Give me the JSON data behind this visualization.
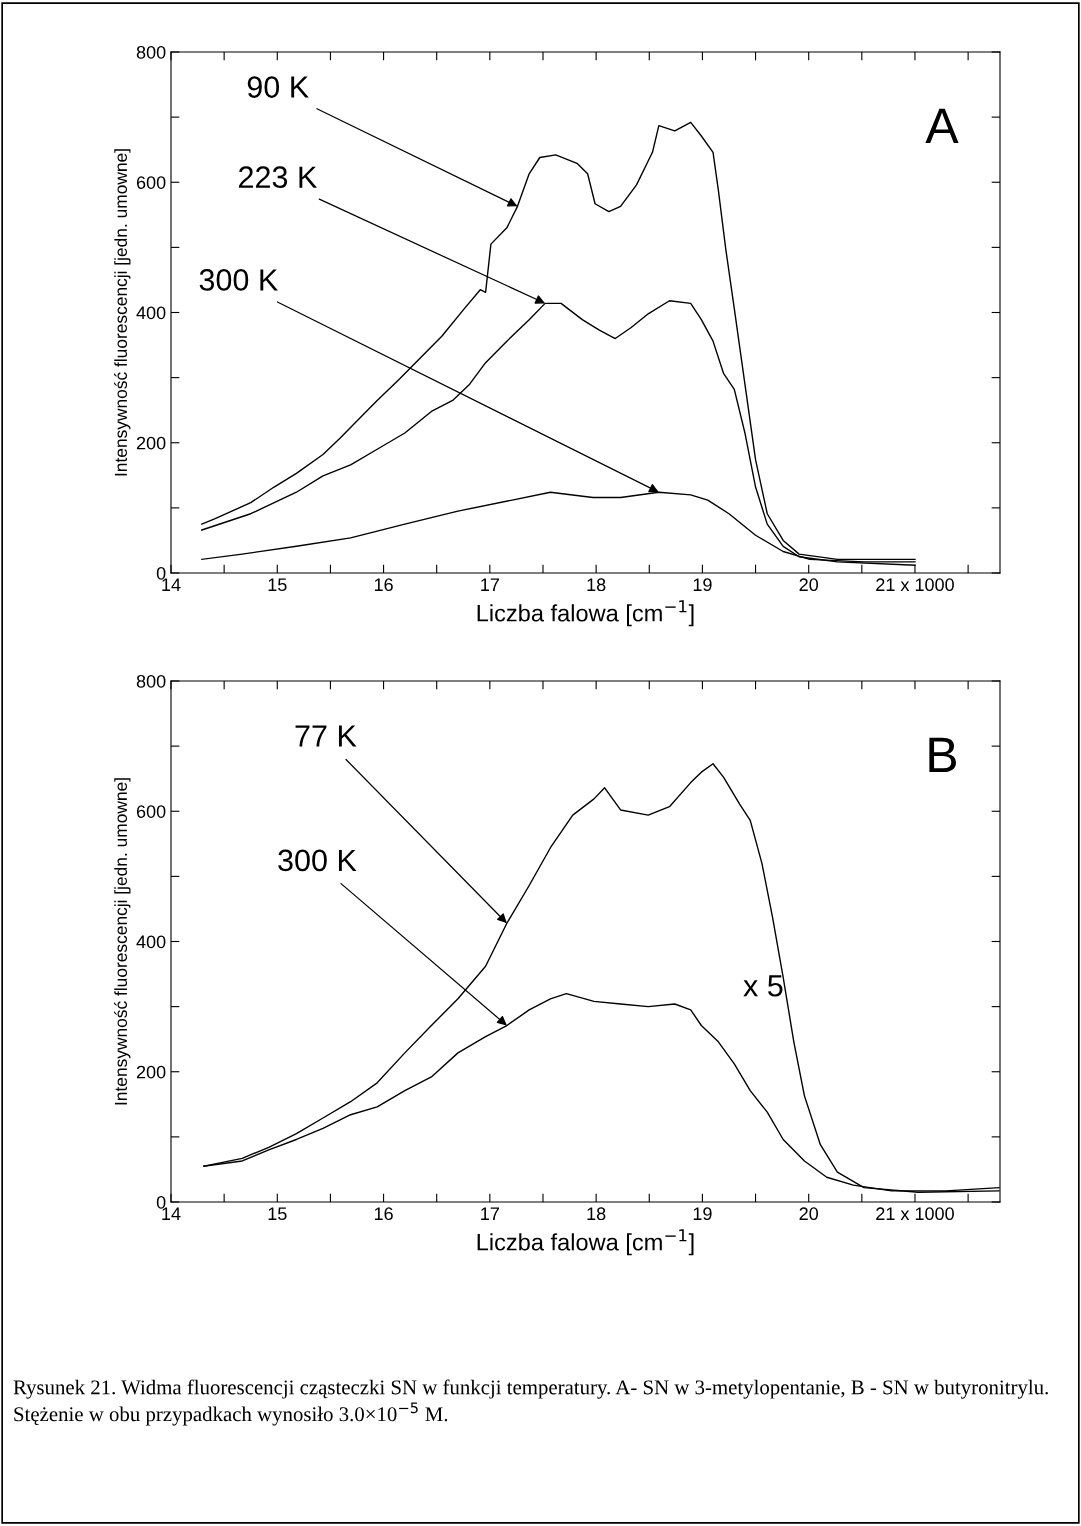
{
  "chart_data": [
    {
      "type": "line",
      "xlabel": "Liczba falowa [cm$^{−1}$]",
      "ylabel": "Intensywność fluorescencji [jedn. umowne]",
      "xlim": [
        14,
        21.8
      ],
      "ylim": [
        0,
        800
      ],
      "xticks": [
        14,
        {
          "value": 14.5,
          "label": null
        },
        15,
        {
          "value": 15.5,
          "label": null
        },
        16,
        {
          "value": 16.5,
          "label": null
        },
        17,
        {
          "value": 17.5,
          "label": null
        },
        18,
        {
          "value": 18.5,
          "label": null
        },
        19,
        {
          "value": 19.5,
          "label": null
        },
        20,
        {
          "value": 20.5,
          "label": null
        },
        {
          "value": 21,
          "label": "21 x 1000"
        },
        {
          "value": 21.5,
          "label": null
        }
      ],
      "yticks": [
        0,
        {
          "value": 100,
          "label": null
        },
        200,
        {
          "value": 300,
          "label": null
        },
        400,
        {
          "value": 500,
          "label": null
        },
        600,
        {
          "value": 700,
          "label": null
        },
        800
      ],
      "grid": false,
      "legend": false,
      "series": [
        {
          "color": "#000000",
          "x": [
            14.29,
            14.41,
            14.75,
            14.97,
            15.18,
            15.43,
            15.59,
            15.74,
            15.94,
            16.15,
            16.35,
            16.55,
            16.76,
            16.91,
            16.96,
            17.01,
            17.16,
            17.26,
            17.37,
            17.47,
            17.62,
            17.82,
            17.92,
            17.99,
            18.12,
            18.23,
            18.38,
            18.53,
            18.59,
            18.74,
            18.89,
            18.99,
            19.1,
            19.15,
            19.22,
            19.3,
            19.4,
            19.5,
            19.61,
            19.76,
            19.91,
            20.27,
            21.0
          ],
          "values": [
            75,
            83,
            108,
            132,
            153,
            182,
            207,
            232,
            265,
            298,
            331,
            364,
            406,
            435,
            431,
            505,
            530,
            563,
            613,
            638,
            642,
            629,
            613,
            567,
            555,
            563,
            596,
            646,
            687,
            679,
            692,
            671,
            646,
            588,
            497,
            406,
            290,
            174,
            91,
            50,
            29,
            21,
            21
          ]
        },
        {
          "color": "#000000",
          "x": [
            14.29,
            14.75,
            15.18,
            15.43,
            15.69,
            15.94,
            16.2,
            16.45,
            16.65,
            16.81,
            16.96,
            17.16,
            17.37,
            17.52,
            17.67,
            17.87,
            18.03,
            18.18,
            18.33,
            18.49,
            18.69,
            18.89,
            18.99,
            19.1,
            19.2,
            19.3,
            19.4,
            19.5,
            19.61,
            19.76,
            19.91,
            20.27,
            21.0
          ],
          "values": [
            66,
            91,
            124,
            149,
            166,
            190,
            215,
            248,
            265,
            290,
            323,
            356,
            389,
            414,
            414,
            389,
            373,
            360,
            377,
            398,
            418,
            414,
            389,
            356,
            306,
            282,
            215,
            132,
            75,
            41,
            25,
            17,
            12
          ]
        },
        {
          "color": "#000000",
          "x": [
            14.29,
            14.67,
            15.18,
            15.69,
            16.2,
            16.7,
            17.21,
            17.57,
            17.97,
            18.23,
            18.59,
            18.89,
            19.05,
            19.25,
            19.5,
            19.76,
            20.01,
            20.52,
            21.0
          ],
          "values": [
            21,
            29,
            41,
            54,
            75,
            95,
            112,
            124,
            116,
            116,
            124,
            120,
            112,
            91,
            58,
            33,
            21,
            17,
            17
          ]
        }
      ],
      "annotations": [
        "A",
        {
          "text": "90 K",
          "x": 17.26,
          "y": 563
        },
        {
          "text": "223 K",
          "x": 17.52,
          "y": 414
        },
        {
          "text": "300 K",
          "x": 18.59,
          "y": 124
        }
      ]
    },
    {
      "type": "line",
      "xlabel": "Liczba falowa [cm$^{−1}$]",
      "ylabel": "Intensywność fluorescencji [jedn. umowne]",
      "xlim": [
        14,
        21.8
      ],
      "ylim": [
        0,
        800
      ],
      "xticks": [
        14,
        {
          "value": 14.5,
          "label": null
        },
        15,
        {
          "value": 15.5,
          "label": null
        },
        16,
        {
          "value": 16.5,
          "label": null
        },
        17,
        {
          "value": 17.5,
          "label": null
        },
        18,
        {
          "value": 18.5,
          "label": null
        },
        19,
        {
          "value": 19.5,
          "label": null
        },
        20,
        {
          "value": 20.5,
          "label": null
        },
        {
          "value": 21,
          "label": "21 x 1000"
        },
        {
          "value": 21.5,
          "label": null
        }
      ],
      "yticks": [
        0,
        {
          "value": 100,
          "label": null
        },
        200,
        {
          "value": 300,
          "label": null
        },
        400,
        {
          "value": 500,
          "label": null
        },
        600,
        {
          "value": 700,
          "label": null
        },
        800
      ],
      "grid": false,
      "legend": false,
      "series": [
        {
          "color": "#000000",
          "x": [
            14.31,
            14.67,
            14.92,
            15.18,
            15.43,
            15.69,
            15.94,
            16.2,
            16.45,
            16.7,
            16.96,
            17.16,
            17.37,
            17.57,
            17.78,
            17.98,
            18.08,
            18.23,
            18.49,
            18.69,
            18.89,
            18.99,
            19.1,
            19.2,
            19.35,
            19.45,
            19.56,
            19.66,
            19.76,
            19.86,
            19.96,
            20.11,
            20.27,
            20.52,
            21.03,
            21.79
          ],
          "values": [
            55,
            67,
            84,
            105,
            129,
            154,
            183,
            229,
            271,
            312,
            362,
            428,
            486,
            544,
            594,
            619,
            636,
            602,
            594,
            607,
            644,
            660,
            673,
            652,
            611,
            586,
            520,
            437,
            345,
            246,
            163,
            88,
            46,
            22,
            15,
            17
          ]
        },
        {
          "color": "#000000",
          "x": [
            14.31,
            14.67,
            14.92,
            15.18,
            15.43,
            15.69,
            15.94,
            16.2,
            16.45,
            16.7,
            16.96,
            17.16,
            17.37,
            17.57,
            17.72,
            17.98,
            18.23,
            18.49,
            18.74,
            18.89,
            18.99,
            19.15,
            19.3,
            19.45,
            19.61,
            19.76,
            19.96,
            20.17,
            20.42,
            20.78,
            21.29,
            21.79
          ],
          "values": [
            55,
            63,
            80,
            96,
            113,
            134,
            146,
            171,
            192,
            229,
            254,
            271,
            295,
            312,
            320,
            308,
            304,
            300,
            304,
            295,
            271,
            246,
            212,
            171,
            138,
            96,
            63,
            38,
            26,
            17,
            17,
            22
          ]
        }
      ],
      "annotations": [
        "B",
        {
          "text": "77 K",
          "x": 17.16,
          "y": 428
        },
        {
          "text": "300 K",
          "x": 17.16,
          "y": 271
        },
        "x 5",
        "Rysunek 21. Widma fluorescencji cząsteczki SN w funkcji temperatury. A- SN w 3-metylopentanie, B - SN w butyronitrylu. Stężenie w obu przypadkach wynosiło 3.0×10$^{−5}$ M."
      ]
    }
  ]
}
